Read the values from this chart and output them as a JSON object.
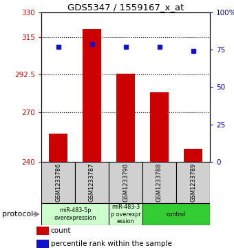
{
  "title": "GDS5347 / 1559167_x_at",
  "samples": [
    "GSM1233786",
    "GSM1233787",
    "GSM1233790",
    "GSM1233788",
    "GSM1233789"
  ],
  "bar_values": [
    257,
    320,
    293,
    282,
    248
  ],
  "percentile_values": [
    77,
    79,
    77,
    77,
    74
  ],
  "ylim_left": [
    240,
    330
  ],
  "ylim_right": [
    0,
    100
  ],
  "yticks_left": [
    240,
    270,
    292.5,
    315,
    330
  ],
  "ytick_labels_left": [
    "240",
    "270",
    "292.5",
    "315",
    "330"
  ],
  "yticks_right": [
    0,
    25,
    50,
    75,
    100
  ],
  "ytick_labels_right": [
    "0",
    "25",
    "50",
    "75",
    "100%"
  ],
  "bar_color": "#cc0000",
  "dot_color": "#1111cc",
  "bar_width": 0.55,
  "group_defs": [
    {
      "start": 0,
      "end": 1,
      "label": "miR-483-5p\noverexpression",
      "color": "#ccffcc"
    },
    {
      "start": 2,
      "end": 2,
      "label": "miR-483-3\np overexpr\nession",
      "color": "#ccffcc"
    },
    {
      "start": 3,
      "end": 4,
      "label": "control",
      "color": "#33cc33"
    }
  ],
  "protocol_label": "protocol",
  "legend_count_label": "count",
  "legend_percentile_label": "percentile rank within the sample",
  "grid_yticks": [
    270,
    292.5,
    315
  ],
  "sample_box_color": "#d0d0d0",
  "left_tick_color": "#cc0000",
  "right_tick_color": "#0000bb"
}
